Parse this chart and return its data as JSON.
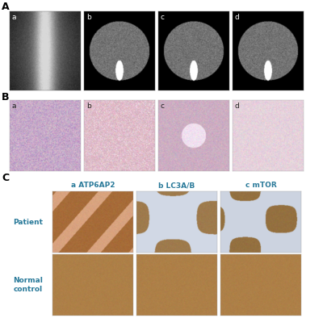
{
  "panel_A_label": "A",
  "panel_B_label": "B",
  "panel_C_label": "C",
  "panel_A_sublabels": [
    "a",
    "b",
    "c",
    "d"
  ],
  "panel_B_sublabels": [
    "a",
    "b",
    "c",
    "d"
  ],
  "panel_C_col_labels": [
    "a ATP6AP2",
    "b LC3A/B",
    "c mTOR"
  ],
  "panel_C_row_labels": [
    "Patient",
    "Normal\ncontrol"
  ],
  "col_label_color": "#2a7a9a",
  "row_label_color": "#2a7a9a",
  "background_color": "#ffffff",
  "label_fontsize": 9,
  "sublabel_fontsize": 6.5,
  "col_label_fontsize": 6.5
}
